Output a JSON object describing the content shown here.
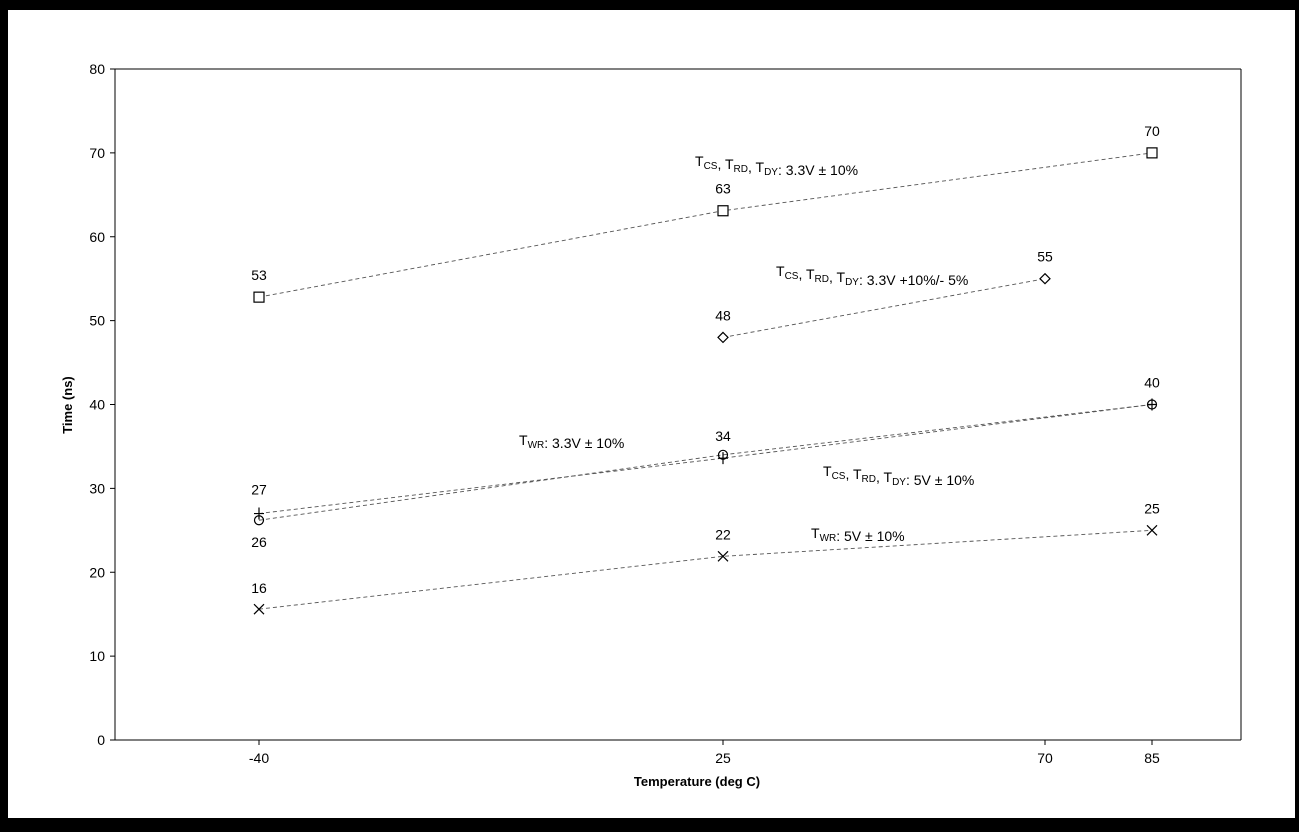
{
  "chart_data": {
    "type": "line",
    "title": "",
    "xlabel": "Temperature (deg C)",
    "ylabel": "Time (ns)",
    "ylim": [
      0,
      80
    ],
    "yticks": [
      0,
      10,
      20,
      30,
      40,
      50,
      60,
      70,
      80
    ],
    "x_categories": [
      "-40",
      "25",
      "70",
      "85"
    ],
    "legend": "none",
    "grid": false,
    "line_style": "dashed",
    "series": [
      {
        "id": "tcs-3v3-10",
        "marker": "square",
        "points": [
          {
            "x": "-40",
            "y": 52.8,
            "label": "53"
          },
          {
            "x": "25",
            "y": 63.1,
            "label": "63"
          },
          {
            "x": "85",
            "y": 70,
            "label": "70"
          }
        ],
        "annotation": {
          "parts": [
            [
              "T",
              "CS"
            ],
            [
              ", T",
              "RD"
            ],
            [
              ", T",
              "DY"
            ],
            [
              ": 3.3V ± 10%",
              ""
            ]
          ]
        }
      },
      {
        "id": "tcs-3v3-10-5",
        "marker": "diamond",
        "points": [
          {
            "x": "25",
            "y": 48,
            "label": "48"
          },
          {
            "x": "70",
            "y": 55,
            "label": "55"
          }
        ],
        "annotation": {
          "parts": [
            [
              "T",
              "CS"
            ],
            [
              ", T",
              "RD"
            ],
            [
              ", T",
              "DY"
            ],
            [
              ": 3.3V +10%/- 5%",
              ""
            ]
          ]
        }
      },
      {
        "id": "twr-3v3-10",
        "marker": "plus",
        "points": [
          {
            "x": "-40",
            "y": 27,
            "label": "27"
          },
          {
            "x": "25",
            "y": 33.6,
            "label": ""
          },
          {
            "x": "85",
            "y": 40,
            "label": ""
          }
        ],
        "annotation": {
          "parts": [
            [
              "T",
              "WR"
            ],
            [
              ": 3.3V ± 10%",
              ""
            ]
          ]
        }
      },
      {
        "id": "tcs-5v-10",
        "marker": "circle",
        "points": [
          {
            "x": "-40",
            "y": 26.2,
            "label": "26"
          },
          {
            "x": "25",
            "y": 34,
            "label": "34"
          },
          {
            "x": "85",
            "y": 40,
            "label": "40"
          }
        ],
        "annotation": {
          "parts": [
            [
              "T",
              "CS"
            ],
            [
              ", T",
              "RD"
            ],
            [
              ", T",
              "DY"
            ],
            [
              ": 5V ± 10%",
              ""
            ]
          ]
        }
      },
      {
        "id": "twr-5v-10",
        "marker": "cross",
        "points": [
          {
            "x": "-40",
            "y": 15.6,
            "label": "16"
          },
          {
            "x": "25",
            "y": 21.9,
            "label": "22"
          },
          {
            "x": "85",
            "y": 25,
            "label": "25"
          }
        ],
        "annotation": {
          "parts": [
            [
              "T",
              "WR"
            ],
            [
              ": 5V ± 10%",
              ""
            ]
          ]
        }
      }
    ]
  }
}
